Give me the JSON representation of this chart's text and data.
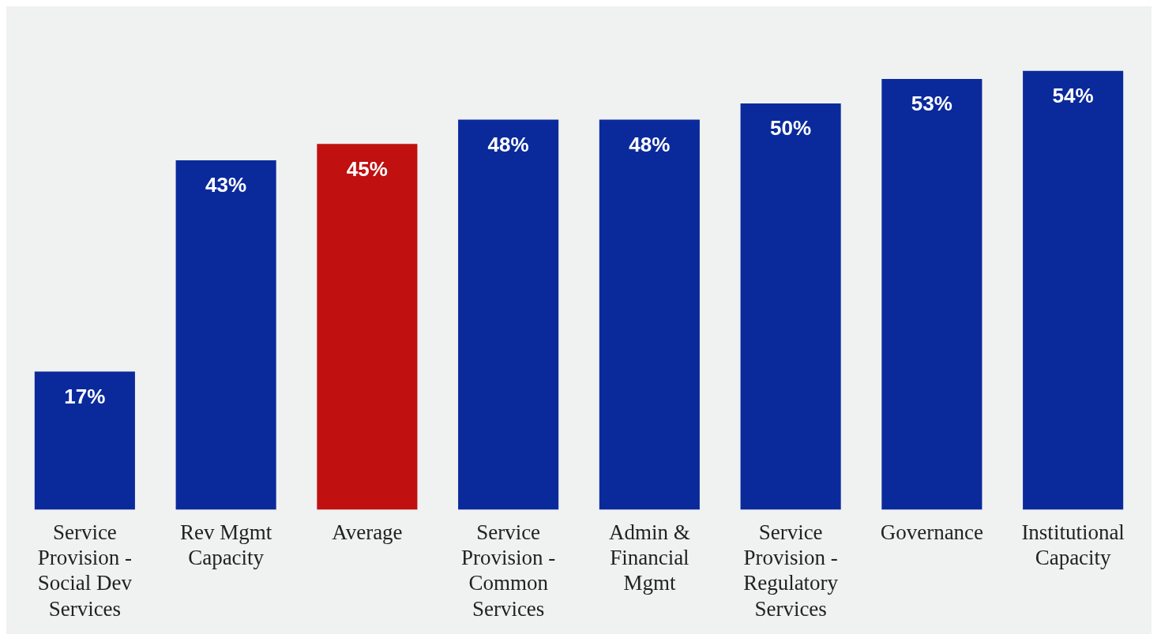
{
  "chart_data": {
    "type": "bar",
    "categories": [
      "Service Provision - Social Dev Services",
      "Rev Mgmt Capacity",
      "Average",
      "Service Provision - Common Services",
      "Admin & Financial Mgmt",
      "Service Provision - Regulatory Services",
      "Governance",
      "Institutional Capacity"
    ],
    "values": [
      17,
      43,
      45,
      48,
      48,
      50,
      53,
      54
    ],
    "colors": [
      "#0a2a9c",
      "#0a2a9c",
      "#c01010",
      "#0a2a9c",
      "#0a2a9c",
      "#0a2a9c",
      "#0a2a9c",
      "#0a2a9c"
    ],
    "value_labels": [
      "17%",
      "43%",
      "45%",
      "48%",
      "48%",
      "50%",
      "53%",
      "54%"
    ],
    "grid": false,
    "legend": false
  }
}
